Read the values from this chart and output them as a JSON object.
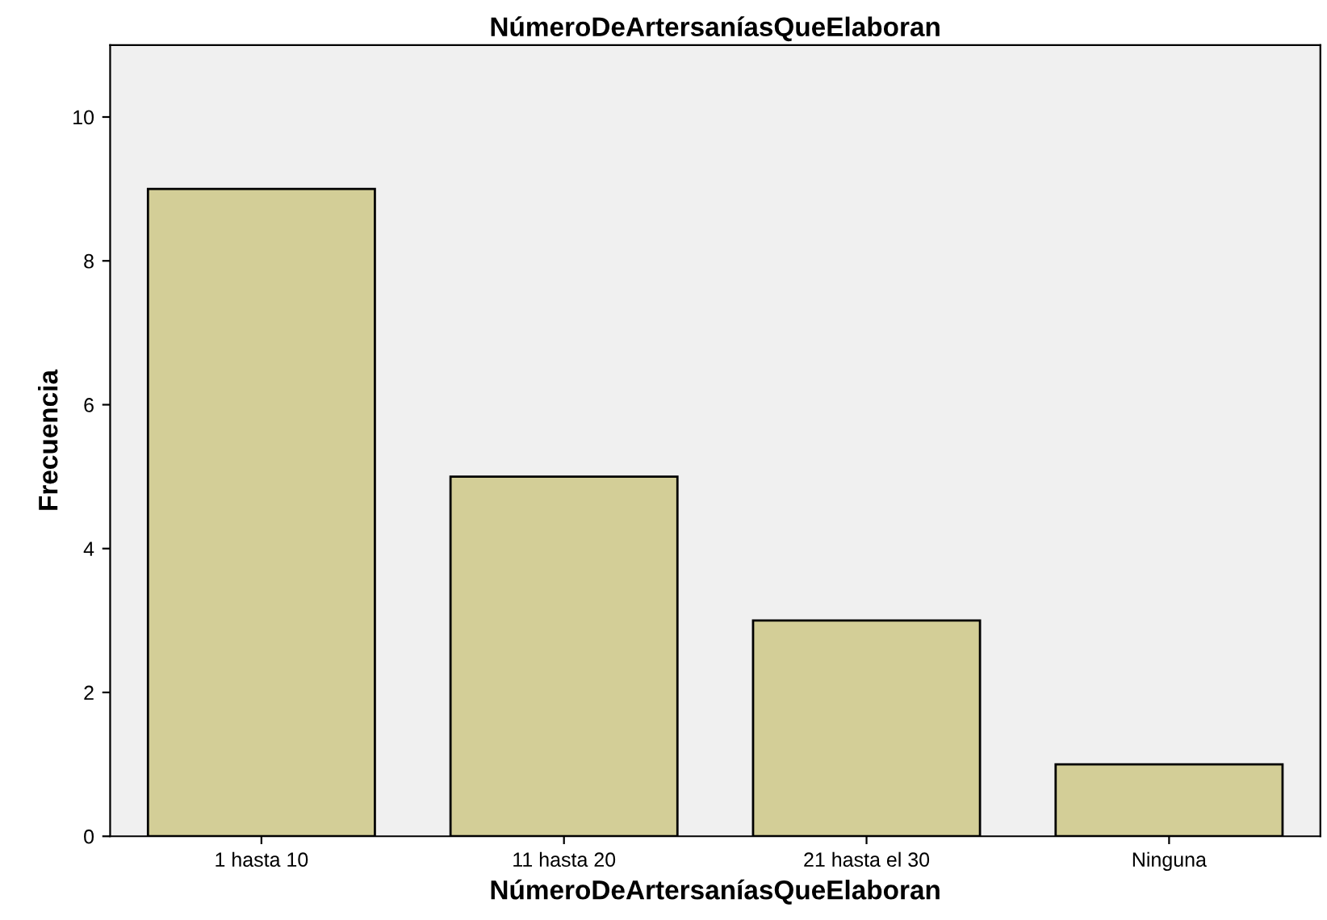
{
  "chart_data": {
    "type": "bar",
    "title": "NúmeroDeArtersaníasQueElaboran",
    "xlabel": "NúmeroDeArtersaníasQueElaboran",
    "ylabel": "Frecuencia",
    "categories": [
      "1 hasta 10",
      "11 hasta 20",
      "21 hasta el 30",
      "Ninguna"
    ],
    "values": [
      9,
      5,
      3,
      1
    ],
    "color": "#d3ce97",
    "ylim": [
      0,
      11
    ],
    "yticks": [
      0,
      2,
      4,
      6,
      8,
      10
    ],
    "grid": false,
    "legend": false
  }
}
